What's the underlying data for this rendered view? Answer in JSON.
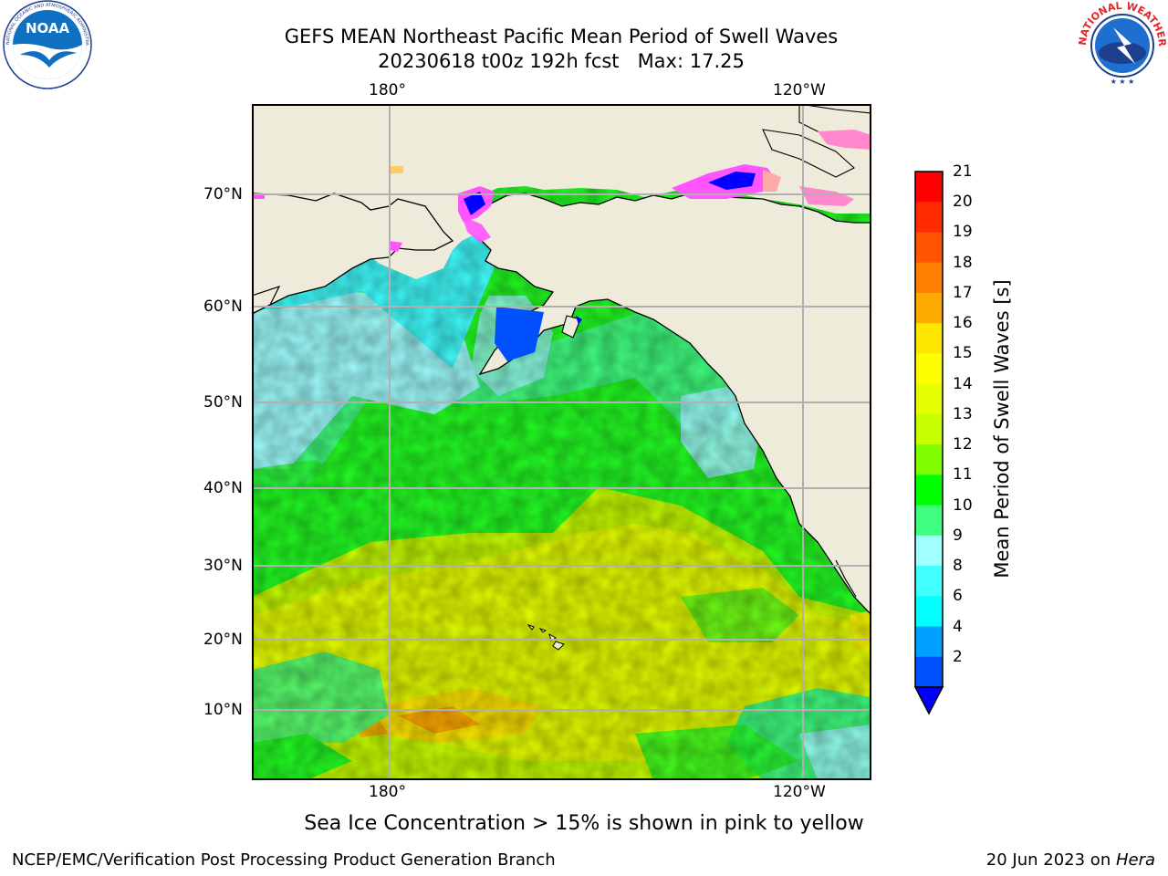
{
  "title": {
    "line1": "GEFS MEAN Northeast Pacific Mean Period of Swell Waves",
    "line2": "20230618 t00z 192h fcst   Max: 17.25"
  },
  "logos": {
    "left": {
      "text": "NOAA",
      "ring_text": "NATIONAL OCEANIC AND ATMOSPHERIC ADMINISTRATION · U.S. DEPARTMENT OF COMMERCE"
    },
    "right": {
      "ring_text": "NATIONAL WEATHER SERVICE"
    }
  },
  "map": {
    "top_lon_labels": [
      "180°",
      "120°W"
    ],
    "bottom_lon_labels": [
      "180°",
      "120°W"
    ],
    "lat_labels": [
      "70°N",
      "60°N",
      "50°N",
      "40°N",
      "30°N",
      "20°N",
      "10°N"
    ],
    "colors": {
      "land": "#efebdb",
      "grid": "#b0b0b0"
    }
  },
  "colorbar": {
    "label": "Mean Period of Swell Waves [s]",
    "ticks": [
      "21",
      "20",
      "19",
      "18",
      "17",
      "16",
      "15",
      "14",
      "13",
      "12",
      "11",
      "10",
      "9",
      "8",
      "6",
      "4",
      "2"
    ],
    "colors": [
      "#ff0000",
      "#ff2a00",
      "#ff5500",
      "#ff8000",
      "#ffaa00",
      "#ffe600",
      "#ffff00",
      "#e6ff00",
      "#c8ff00",
      "#80ff00",
      "#00ff00",
      "#40ff80",
      "#a0ffff",
      "#40ffff",
      "#00ffff",
      "#00a0ff",
      "#0050ff"
    ],
    "under_color": "#0000ff"
  },
  "caption": "Sea Ice Concentration > 15% is shown in pink to yellow",
  "footer": {
    "left": "NCEP/EMC/Verification Post Processing Product Generation Branch",
    "right_prefix": "20 Jun 2023 on ",
    "right_host": "Hera"
  }
}
